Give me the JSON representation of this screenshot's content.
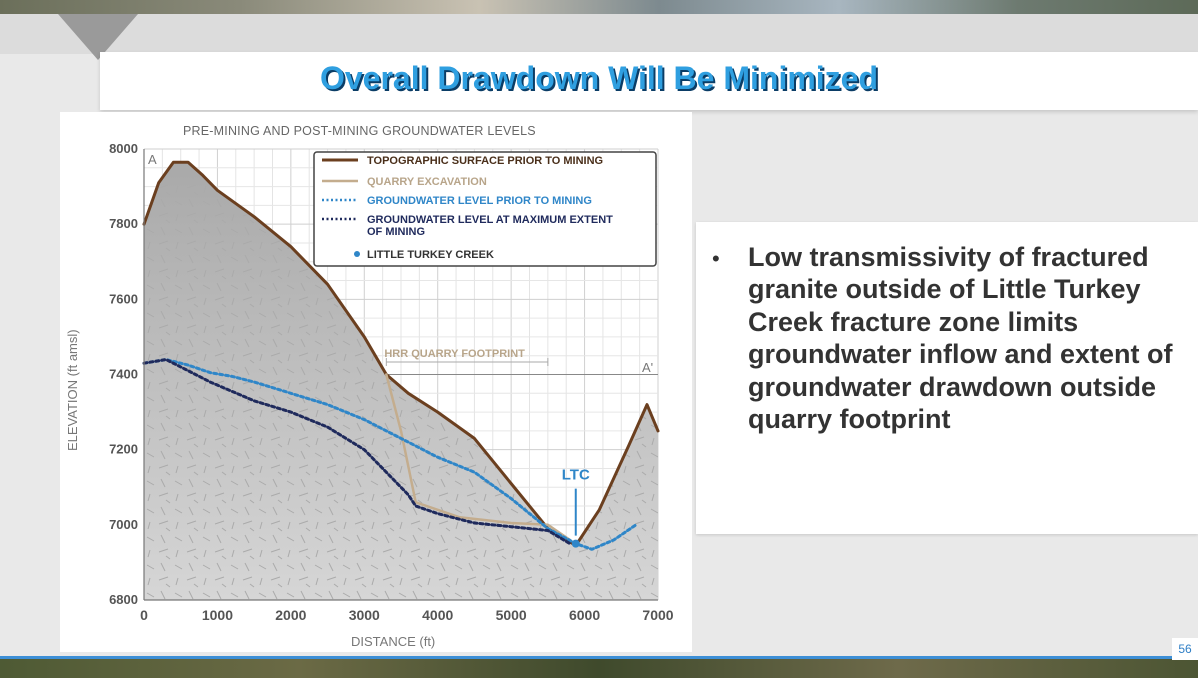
{
  "slide": {
    "title": "Overall Drawdown Will Be Minimized",
    "bullet": "Low transmissivity of fractured granite outside of Little Turkey Creek fracture zone limits groundwater inflow and extent of groundwater drawdown outside quarry footprint",
    "page_number": "56"
  },
  "colors": {
    "title": "#2f9fe0",
    "topo": "#6b3f1f",
    "quarry": "#c4ad8e",
    "gw_pre": "#2f86c8",
    "gw_max": "#1f2a5c",
    "ltc": "#2f86c8"
  },
  "chart_data": {
    "type": "line",
    "title": "PRE-MINING AND POST-MINING GROUNDWATER LEVELS",
    "xlabel": "DISTANCE (ft)",
    "ylabel": "ELEVATION (ft amsl)",
    "xlim": [
      0,
      7000
    ],
    "ylim": [
      6800,
      8000
    ],
    "xticks": [
      0,
      1000,
      2000,
      3000,
      4000,
      5000,
      6000,
      7000
    ],
    "yticks": [
      6800,
      7000,
      7200,
      7400,
      7600,
      7800,
      8000
    ],
    "section_start": "A",
    "section_end": "A'",
    "footprint_label": "HRR QUARRY FOOTPRINT",
    "footprint_range": [
      3300,
      5500
    ],
    "series": [
      {
        "name": "TOPOGRAPHIC SURFACE PRIOR TO MINING",
        "x": [
          0,
          200,
          400,
          600,
          800,
          1000,
          1500,
          2000,
          2500,
          3000,
          3300,
          3600,
          4000,
          4500,
          5000,
          5500,
          5880,
          6200,
          6600,
          6850,
          7000
        ],
        "y": [
          7800,
          7910,
          7965,
          7965,
          7930,
          7890,
          7820,
          7740,
          7640,
          7500,
          7400,
          7350,
          7300,
          7230,
          7110,
          6990,
          6945,
          7040,
          7210,
          7320,
          7250
        ]
      },
      {
        "name": "QUARRY EXCAVATION",
        "x": [
          3300,
          3500,
          3700,
          4000,
          4300,
          5000,
          5500,
          5800
        ],
        "y": [
          7400,
          7250,
          7060,
          7040,
          7020,
          7005,
          7000,
          6960
        ]
      },
      {
        "name": "GROUNDWATER LEVEL PRIOR TO MINING",
        "x": [
          0,
          300,
          600,
          900,
          1200,
          1500,
          2000,
          2500,
          3000,
          3500,
          4000,
          4500,
          5000,
          5500,
          5880,
          6100,
          6400,
          6700
        ],
        "y": [
          7430,
          7440,
          7425,
          7405,
          7395,
          7380,
          7350,
          7320,
          7280,
          7230,
          7180,
          7140,
          7070,
          6990,
          6950,
          6935,
          6960,
          7000
        ]
      },
      {
        "name": "GROUNDWATER LEVEL AT MAXIMUM EXTENT OF MINING",
        "x": [
          0,
          300,
          600,
          900,
          1200,
          1500,
          2000,
          2500,
          3000,
          3300,
          3600,
          3700,
          4000,
          4500,
          5000,
          5500,
          5800
        ],
        "y": [
          7430,
          7440,
          7410,
          7380,
          7355,
          7330,
          7300,
          7260,
          7200,
          7140,
          7080,
          7050,
          7030,
          7005,
          6995,
          6985,
          6950
        ]
      }
    ],
    "points": [
      {
        "name": "LITTLE TURKEY CREEK",
        "label": "LTC",
        "x": 5880,
        "y": 6950
      }
    ],
    "legend": [
      "TOPOGRAPHIC SURFACE PRIOR TO MINING",
      "QUARRY EXCAVATION",
      "GROUNDWATER LEVEL PRIOR TO MINING",
      "GROUNDWATER LEVEL AT MAXIMUM EXTENT OF MINING",
      "LITTLE TURKEY CREEK"
    ],
    "legend_position": "top-right"
  }
}
